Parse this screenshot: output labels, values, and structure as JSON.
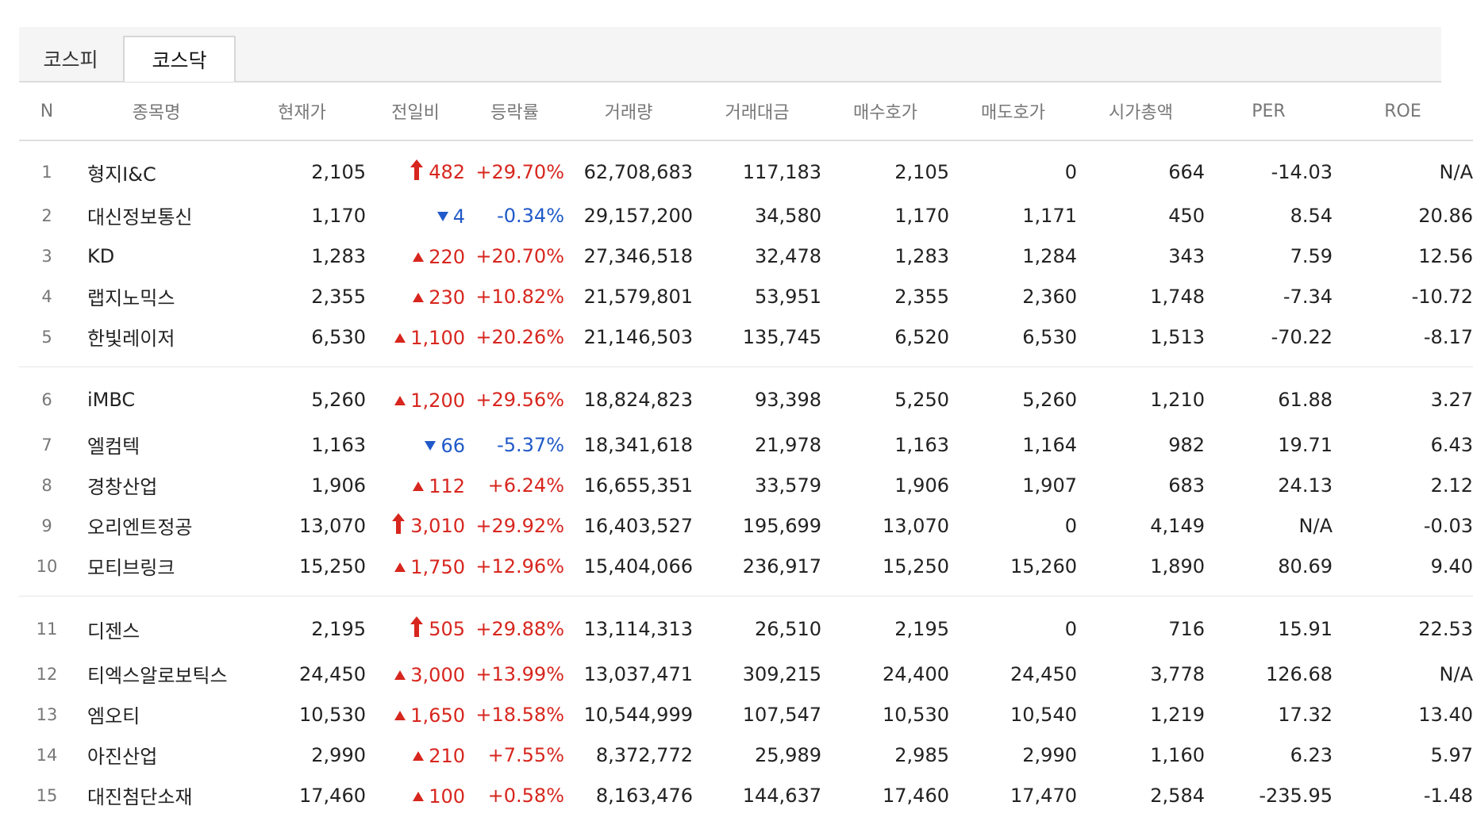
{
  "tabs": [
    "코스피",
    "코스닥"
  ],
  "active_tab": "코스닥",
  "colors": {
    "up": "#d7261e",
    "down": "#2059c9"
  },
  "columns": [
    "N",
    "종목명",
    "현재가",
    "전일비",
    "등락률",
    "거래량",
    "거래대금",
    "매수호가",
    "매도호가",
    "시가총액",
    "PER",
    "ROE"
  ],
  "rows": [
    {
      "n": "1",
      "name": "형지I&C",
      "price": "2,105",
      "change": "482",
      "dir": "upper",
      "rate": "+29.70%",
      "volume": "62,708,683",
      "amount": "117,183",
      "bid": "2,105",
      "ask": "0",
      "cap": "664",
      "per": "-14.03",
      "roe": "N/A"
    },
    {
      "n": "2",
      "name": "대신정보통신",
      "price": "1,170",
      "change": "4",
      "dir": "down",
      "rate": "-0.34%",
      "volume": "29,157,200",
      "amount": "34,580",
      "bid": "1,170",
      "ask": "1,171",
      "cap": "450",
      "per": "8.54",
      "roe": "20.86"
    },
    {
      "n": "3",
      "name": "KD",
      "price": "1,283",
      "change": "220",
      "dir": "up",
      "rate": "+20.70%",
      "volume": "27,346,518",
      "amount": "32,478",
      "bid": "1,283",
      "ask": "1,284",
      "cap": "343",
      "per": "7.59",
      "roe": "12.56"
    },
    {
      "n": "4",
      "name": "랩지노믹스",
      "price": "2,355",
      "change": "230",
      "dir": "up",
      "rate": "+10.82%",
      "volume": "21,579,801",
      "amount": "53,951",
      "bid": "2,355",
      "ask": "2,360",
      "cap": "1,748",
      "per": "-7.34",
      "roe": "-10.72"
    },
    {
      "n": "5",
      "name": "한빛레이저",
      "price": "6,530",
      "change": "1,100",
      "dir": "up",
      "rate": "+20.26%",
      "volume": "21,146,503",
      "amount": "135,745",
      "bid": "6,520",
      "ask": "6,530",
      "cap": "1,513",
      "per": "-70.22",
      "roe": "-8.17"
    },
    {
      "n": "6",
      "name": "iMBC",
      "price": "5,260",
      "change": "1,200",
      "dir": "up",
      "rate": "+29.56%",
      "volume": "18,824,823",
      "amount": "93,398",
      "bid": "5,250",
      "ask": "5,260",
      "cap": "1,210",
      "per": "61.88",
      "roe": "3.27"
    },
    {
      "n": "7",
      "name": "엘컴텍",
      "price": "1,163",
      "change": "66",
      "dir": "down",
      "rate": "-5.37%",
      "volume": "18,341,618",
      "amount": "21,978",
      "bid": "1,163",
      "ask": "1,164",
      "cap": "982",
      "per": "19.71",
      "roe": "6.43"
    },
    {
      "n": "8",
      "name": "경창산업",
      "price": "1,906",
      "change": "112",
      "dir": "up",
      "rate": "+6.24%",
      "volume": "16,655,351",
      "amount": "33,579",
      "bid": "1,906",
      "ask": "1,907",
      "cap": "683",
      "per": "24.13",
      "roe": "2.12"
    },
    {
      "n": "9",
      "name": "오리엔트정공",
      "price": "13,070",
      "change": "3,010",
      "dir": "upper",
      "rate": "+29.92%",
      "volume": "16,403,527",
      "amount": "195,699",
      "bid": "13,070",
      "ask": "0",
      "cap": "4,149",
      "per": "N/A",
      "roe": "-0.03"
    },
    {
      "n": "10",
      "name": "모티브링크",
      "price": "15,250",
      "change": "1,750",
      "dir": "up",
      "rate": "+12.96%",
      "volume": "15,404,066",
      "amount": "236,917",
      "bid": "15,250",
      "ask": "15,260",
      "cap": "1,890",
      "per": "80.69",
      "roe": "9.40"
    },
    {
      "n": "11",
      "name": "디젠스",
      "price": "2,195",
      "change": "505",
      "dir": "upper",
      "rate": "+29.88%",
      "volume": "13,114,313",
      "amount": "26,510",
      "bid": "2,195",
      "ask": "0",
      "cap": "716",
      "per": "15.91",
      "roe": "22.53"
    },
    {
      "n": "12",
      "name": "티엑스알로보틱스",
      "price": "24,450",
      "change": "3,000",
      "dir": "up",
      "rate": "+13.99%",
      "volume": "13,037,471",
      "amount": "309,215",
      "bid": "24,400",
      "ask": "24,450",
      "cap": "3,778",
      "per": "126.68",
      "roe": "N/A"
    },
    {
      "n": "13",
      "name": "엠오티",
      "price": "10,530",
      "change": "1,650",
      "dir": "up",
      "rate": "+18.58%",
      "volume": "10,544,999",
      "amount": "107,547",
      "bid": "10,530",
      "ask": "10,540",
      "cap": "1,219",
      "per": "17.32",
      "roe": "13.40"
    },
    {
      "n": "14",
      "name": "아진산업",
      "price": "2,990",
      "change": "210",
      "dir": "up",
      "rate": "+7.55%",
      "volume": "8,372,772",
      "amount": "25,989",
      "bid": "2,985",
      "ask": "2,990",
      "cap": "1,160",
      "per": "6.23",
      "roe": "5.97"
    },
    {
      "n": "15",
      "name": "대진첨단소재",
      "price": "17,460",
      "change": "100",
      "dir": "up",
      "rate": "+0.58%",
      "volume": "8,163,476",
      "amount": "144,637",
      "bid": "17,460",
      "ask": "17,470",
      "cap": "2,584",
      "per": "-235.95",
      "roe": "-1.48"
    }
  ]
}
